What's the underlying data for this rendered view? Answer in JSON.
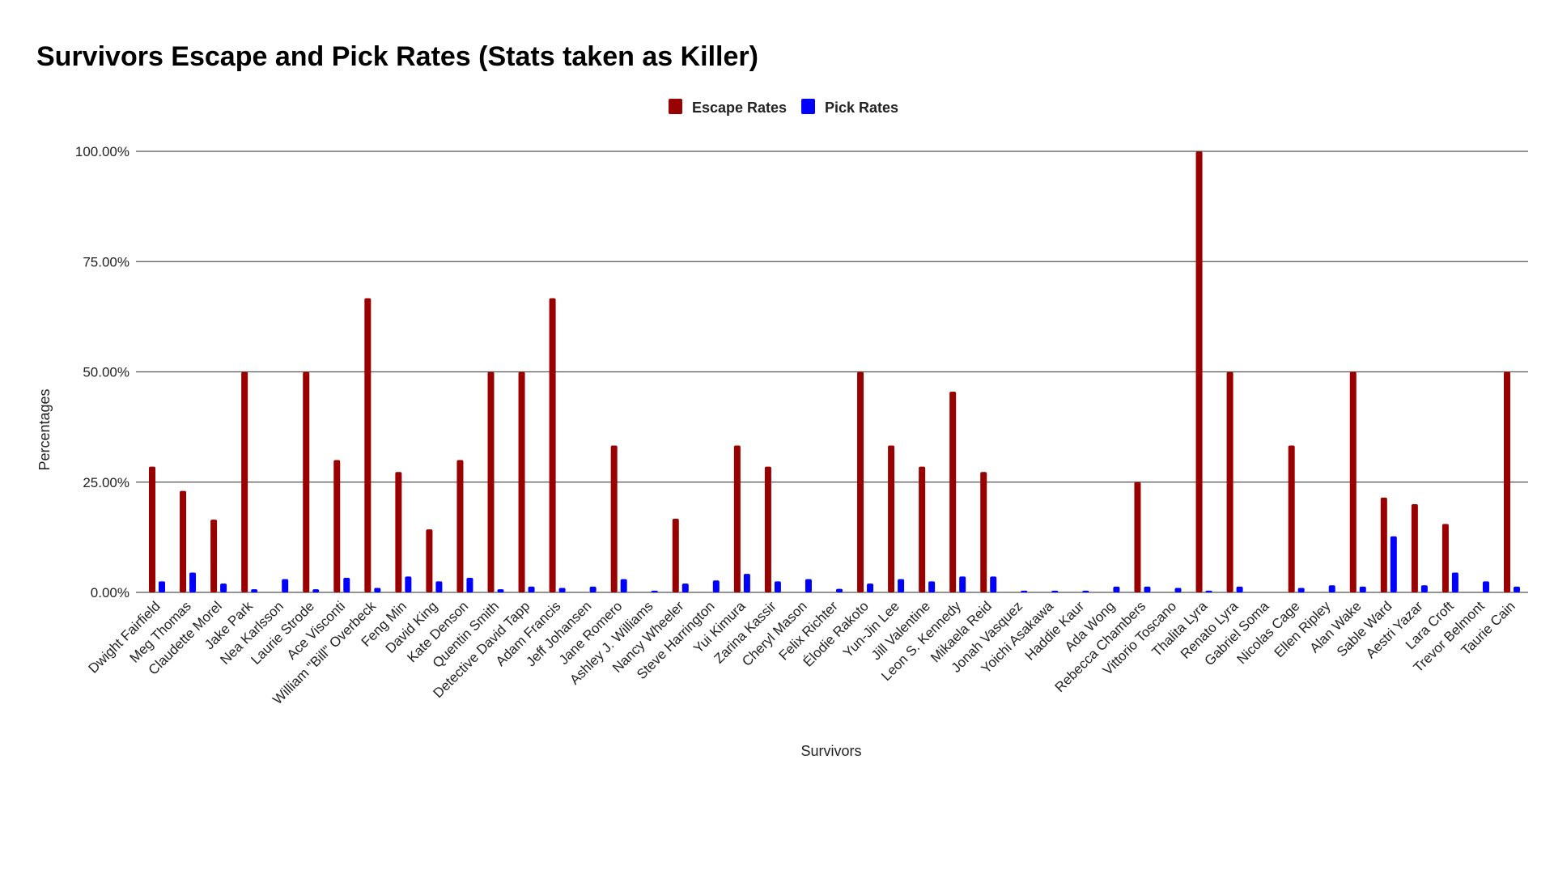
{
  "chart_data": {
    "type": "bar",
    "title": "Survivors Escape and Pick Rates (Stats taken as Killer)",
    "xlabel": "Survivors",
    "ylabel": "Percentages",
    "ylim": [
      0,
      100
    ],
    "y_ticks": [
      "0.00%",
      "25.00%",
      "50.00%",
      "75.00%",
      "100.00%"
    ],
    "y_tick_values": [
      0,
      25,
      50,
      75,
      100
    ],
    "grid": true,
    "legend_position": "top-center",
    "categories": [
      "Dwight Fairfield",
      "Meg Thomas",
      "Claudette Morel",
      "Jake Park",
      "Nea Karlsson",
      "Laurie Strode",
      "Ace Visconti",
      "William \"Bill\" Overbeck",
      "Feng Min",
      "David King",
      "Kate Denson",
      "Quentin Smith",
      "Detective David Tapp",
      "Adam Francis",
      "Jeff Johansen",
      "Jane Romero",
      "Ashley J. Williams",
      "Nancy Wheeler",
      "Steve Harrington",
      "Yui Kimura",
      "Zarina Kassir",
      "Cheryl Mason",
      "Felix Richter",
      "Élodie Rakoto",
      "Yun-Jin Lee",
      "Jill Valentine",
      "Leon S. Kennedy",
      "Mikaela Reid",
      "Jonah Vasquez",
      "Yoichi Asakawa",
      "Haddie Kaur",
      "Ada Wong",
      "Rebecca Chambers",
      "Vittorio Toscano",
      "Thalita Lyra",
      "Renato Lyra",
      "Gabriel Soma",
      "Nicolas Cage",
      "Ellen Ripley",
      "Alan Wake",
      "Sable Ward",
      "Aestri Yazar",
      "Lara Croft",
      "Trevor Belmont",
      "Taurie Cain"
    ],
    "series": [
      {
        "name": "Escape Rates",
        "color": "#990000",
        "values": [
          28.5,
          23,
          16.5,
          50,
          0,
          50,
          30,
          66.7,
          27.3,
          14.3,
          30,
          50,
          50,
          66.7,
          0,
          33.3,
          0,
          16.7,
          0,
          33.3,
          28.5,
          0,
          0,
          50,
          33.3,
          28.5,
          45.5,
          27.3,
          0,
          0,
          0,
          0,
          25,
          0,
          100,
          50,
          0,
          33.3,
          0,
          50,
          21.5,
          20,
          15.5,
          0,
          50
        ]
      },
      {
        "name": "Pick Rates",
        "color": "#0000ff",
        "values": [
          2.5,
          4.5,
          2,
          0.7,
          3,
          0.7,
          3.3,
          1,
          3.6,
          2.5,
          3.3,
          0.7,
          1.3,
          1,
          1.3,
          3,
          0.4,
          2,
          2.7,
          4.2,
          2.5,
          3,
          0.8,
          2,
          3,
          2.5,
          3.6,
          3.6,
          0.4,
          0.4,
          0.4,
          1.3,
          1.3,
          1,
          0.4,
          1.3,
          0,
          1,
          1.6,
          1.3,
          12.7,
          1.6,
          4.5,
          2.5,
          1.3
        ]
      }
    ]
  }
}
